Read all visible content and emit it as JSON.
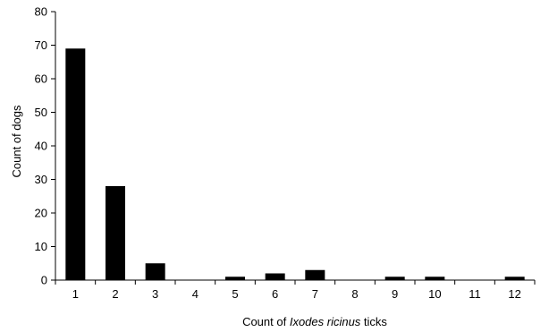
{
  "chart_data": {
    "type": "bar",
    "categories": [
      "1",
      "2",
      "3",
      "4",
      "5",
      "6",
      "7",
      "8",
      "9",
      "10",
      "11",
      "12"
    ],
    "values": [
      69,
      28,
      5,
      0,
      1,
      2,
      3,
      0,
      1,
      1,
      0,
      1
    ],
    "title": "",
    "xlabel_prefix": "Count of ",
    "xlabel_italic": "Ixodes ricinus",
    "xlabel_suffix": " ticks",
    "ylabel": "Count of dogs",
    "ylim": [
      0,
      80
    ],
    "yticks": [
      0,
      10,
      20,
      30,
      40,
      50,
      60,
      70,
      80
    ],
    "grid": false,
    "legend": "none",
    "bar_color": "#000000"
  }
}
